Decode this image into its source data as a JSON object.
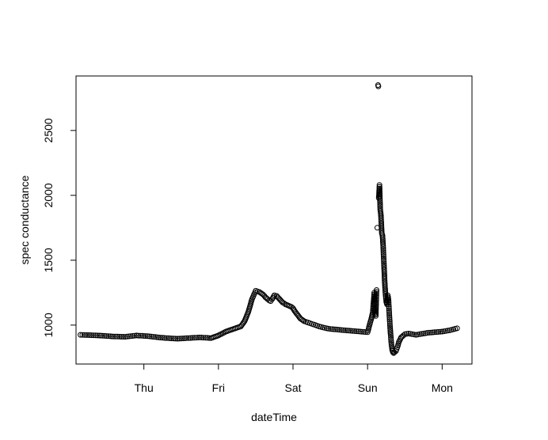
{
  "chart_data": {
    "type": "scatter",
    "title": "",
    "xlabel": "dateTime",
    "ylabel": "spec conductance",
    "x_tick_labels": [
      "Thu",
      "Fri",
      "Sat",
      "Sun",
      "Mon"
    ],
    "x_ticks_day": [
      1,
      2,
      3,
      4,
      5
    ],
    "xlim_day": [
      0.09,
      5.4
    ],
    "y_ticks": [
      1000,
      1500,
      2000,
      2500
    ],
    "ylim": [
      700,
      2920
    ],
    "marker": "open-circle",
    "grid": false,
    "legend": "none",
    "series": [
      {
        "x_day": [
          0.15,
          0.3,
          0.45,
          0.6,
          0.75,
          0.9,
          1.05,
          1.2,
          1.3,
          1.45,
          1.6,
          1.75,
          1.9,
          2.0,
          2.1,
          2.2,
          2.3,
          2.35,
          2.4,
          2.45,
          2.5,
          2.55,
          2.6,
          2.63,
          2.66,
          2.68,
          2.7,
          2.72,
          2.75,
          2.78,
          2.82,
          2.86,
          2.9,
          2.94,
          2.98,
          3.0,
          3.02,
          3.06,
          3.1,
          3.15,
          3.2,
          3.25,
          3.3,
          3.35,
          3.4,
          3.45,
          3.5,
          3.55,
          3.6,
          3.7,
          3.8,
          3.9,
          4.0,
          4.05,
          4.07,
          4.08,
          4.09,
          4.1,
          4.11,
          4.12,
          4.13,
          4.14,
          4.145,
          4.15,
          4.16,
          4.17,
          4.18,
          4.19,
          4.2,
          4.21,
          4.22,
          4.23,
          4.24,
          4.25,
          4.26,
          4.27,
          4.28,
          4.29,
          4.3,
          4.31,
          4.32,
          4.33,
          4.34,
          4.35,
          4.36,
          4.38,
          4.4,
          4.42,
          4.45,
          4.48,
          4.5,
          4.55,
          4.6,
          4.65,
          4.7,
          4.75,
          4.8,
          4.9,
          5.0,
          5.1,
          5.2
        ],
        "y": [
          925,
          922,
          918,
          912,
          910,
          920,
          915,
          905,
          900,
          895,
          900,
          905,
          900,
          920,
          950,
          970,
          990,
          1030,
          1100,
          1200,
          1265,
          1255,
          1235,
          1215,
          1200,
          1190,
          1185,
          1200,
          1230,
          1225,
          1200,
          1175,
          1160,
          1150,
          1140,
          1130,
          1110,
          1080,
          1050,
          1030,
          1020,
          1010,
          1000,
          990,
          982,
          975,
          970,
          968,
          965,
          960,
          955,
          950,
          945,
          1050,
          1100,
          1180,
          1250,
          1080,
          1070,
          1270,
          1750,
          2850,
          2840,
          1980,
          2080,
          1890,
          1840,
          1710,
          1690,
          1600,
          1460,
          1330,
          1240,
          1180,
          1160,
          1230,
          1200,
          1100,
          1000,
          920,
          850,
          810,
          790,
          785,
          790,
          800,
          830,
          870,
          905,
          920,
          930,
          935,
          930,
          925,
          930,
          935,
          940,
          945,
          950,
          960,
          975
        ]
      }
    ]
  }
}
